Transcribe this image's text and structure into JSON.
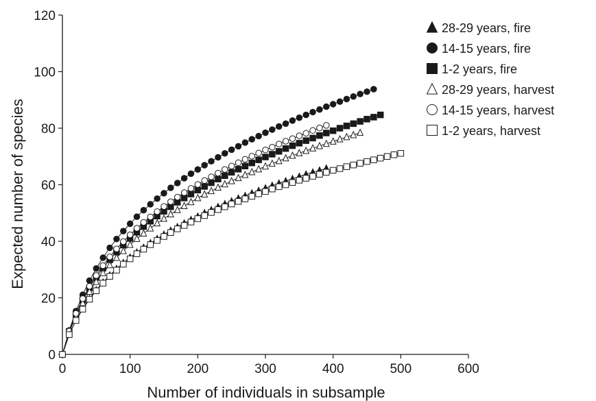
{
  "chart_data": {
    "type": "line",
    "xlabel": "Number of individuals in subsample",
    "ylabel": "Expected number of species",
    "xlim": [
      0,
      600
    ],
    "ylim": [
      0,
      120
    ],
    "xticks": [
      0,
      100,
      200,
      300,
      400,
      500,
      600
    ],
    "yticks": [
      0,
      20,
      40,
      60,
      80,
      100,
      120
    ],
    "grid": false,
    "legend_position": "top-right",
    "series": [
      {
        "name": "28-29 years, fire",
        "marker": "triangle",
        "filled": true,
        "x": [
          0,
          10,
          20,
          30,
          40,
          50,
          60,
          70,
          80,
          90,
          100,
          110,
          120,
          130,
          140,
          150,
          160,
          170,
          180,
          190,
          200,
          210,
          220,
          230,
          240,
          250,
          260,
          270,
          280,
          290,
          300,
          310,
          320,
          330,
          340,
          350,
          360,
          370,
          380,
          390
        ],
        "y": [
          0,
          7.0,
          12.1,
          16.2,
          19.7,
          22.8,
          25.5,
          28.0,
          30.3,
          32.4,
          34.3,
          36.1,
          37.8,
          39.4,
          40.9,
          42.4,
          43.8,
          45.1,
          46.4,
          47.6,
          48.8,
          50.0,
          51.1,
          52.2,
          53.2,
          54.2,
          55.2,
          56.1,
          57.0,
          57.9,
          58.8,
          59.7,
          60.5,
          61.3,
          62.1,
          62.9,
          63.7,
          64.4,
          65.1,
          65.8
        ]
      },
      {
        "name": "14-15 years, fire",
        "marker": "circle",
        "filled": true,
        "x": [
          0,
          10,
          20,
          30,
          40,
          50,
          60,
          70,
          80,
          90,
          100,
          110,
          120,
          130,
          140,
          150,
          160,
          170,
          180,
          190,
          200,
          210,
          220,
          230,
          240,
          250,
          260,
          270,
          280,
          290,
          300,
          310,
          320,
          330,
          340,
          350,
          360,
          370,
          380,
          390,
          400,
          410,
          420,
          430,
          440,
          450,
          460
        ],
        "y": [
          0,
          8.5,
          15.3,
          21.1,
          26.1,
          30.4,
          34.2,
          37.7,
          40.8,
          43.6,
          46.2,
          48.7,
          51.0,
          53.1,
          55.1,
          57.0,
          58.9,
          60.6,
          62.3,
          63.9,
          65.4,
          66.9,
          68.3,
          69.7,
          71.1,
          72.4,
          73.6,
          74.9,
          76.1,
          77.2,
          78.4,
          79.5,
          80.6,
          81.6,
          82.7,
          83.7,
          84.7,
          85.7,
          86.6,
          87.6,
          88.5,
          89.4,
          90.3,
          91.2,
          92.1,
          92.9,
          93.8
        ]
      },
      {
        "name": "1-2 years, fire",
        "marker": "square",
        "filled": true,
        "x": [
          0,
          10,
          20,
          30,
          40,
          50,
          60,
          70,
          80,
          90,
          100,
          110,
          120,
          130,
          140,
          150,
          160,
          170,
          180,
          190,
          200,
          210,
          220,
          230,
          240,
          250,
          260,
          270,
          280,
          290,
          300,
          310,
          320,
          330,
          340,
          350,
          360,
          370,
          380,
          390,
          400,
          410,
          420,
          430,
          440,
          450,
          460,
          470
        ],
        "y": [
          0,
          8.1,
          14.2,
          19.2,
          23.5,
          27.2,
          30.5,
          33.5,
          36.2,
          38.7,
          41.0,
          43.2,
          45.2,
          47.1,
          48.9,
          50.6,
          52.2,
          53.8,
          55.3,
          56.7,
          58.1,
          59.4,
          60.7,
          62.0,
          63.2,
          64.4,
          65.5,
          66.6,
          67.7,
          68.8,
          69.8,
          70.8,
          71.8,
          72.8,
          73.8,
          74.7,
          75.6,
          76.5,
          77.4,
          78.3,
          79.1,
          80.0,
          80.8,
          81.6,
          82.4,
          83.2,
          83.9,
          84.7
        ]
      },
      {
        "name": "28-29 years, harvest",
        "marker": "triangle",
        "filled": false,
        "x": [
          0,
          10,
          20,
          30,
          40,
          50,
          60,
          70,
          80,
          90,
          100,
          110,
          120,
          130,
          140,
          150,
          160,
          170,
          180,
          190,
          200,
          210,
          220,
          230,
          240,
          250,
          260,
          270,
          280,
          290,
          300,
          310,
          320,
          330,
          340,
          350,
          360,
          370,
          380,
          390,
          400,
          410,
          420,
          430,
          440
        ],
        "y": [
          0,
          7.8,
          13.5,
          18.2,
          22.2,
          25.7,
          28.8,
          31.6,
          34.2,
          36.6,
          38.8,
          40.9,
          42.8,
          44.6,
          46.4,
          48.0,
          49.6,
          51.1,
          52.5,
          53.9,
          55.3,
          56.6,
          57.8,
          59.0,
          60.2,
          61.3,
          62.4,
          63.5,
          64.5,
          65.5,
          66.5,
          67.5,
          68.4,
          69.4,
          70.3,
          71.2,
          72.0,
          72.9,
          73.7,
          74.5,
          75.3,
          76.1,
          76.9,
          77.6,
          78.4
        ]
      },
      {
        "name": "14-15 years, harvest",
        "marker": "circle",
        "filled": false,
        "x": [
          0,
          10,
          20,
          30,
          40,
          50,
          60,
          70,
          80,
          90,
          100,
          110,
          120,
          130,
          140,
          150,
          160,
          170,
          180,
          190,
          200,
          210,
          220,
          230,
          240,
          250,
          260,
          270,
          280,
          290,
          300,
          310,
          320,
          330,
          340,
          350,
          360,
          370,
          380,
          390
        ],
        "y": [
          0,
          8.2,
          14.5,
          19.7,
          24.1,
          27.9,
          31.4,
          34.5,
          37.3,
          39.9,
          42.3,
          44.6,
          46.7,
          48.6,
          50.5,
          52.3,
          54.0,
          55.6,
          57.2,
          58.7,
          60.1,
          61.5,
          62.8,
          64.1,
          65.4,
          66.6,
          67.8,
          69.0,
          70.1,
          71.2,
          72.3,
          73.3,
          74.4,
          75.4,
          76.3,
          77.3,
          78.2,
          79.2,
          80.1,
          81.0
        ]
      },
      {
        "name": "1-2 years, harvest",
        "marker": "square",
        "filled": false,
        "x": [
          0,
          10,
          20,
          30,
          40,
          50,
          60,
          70,
          80,
          90,
          100,
          110,
          120,
          130,
          140,
          150,
          160,
          170,
          180,
          190,
          200,
          210,
          220,
          230,
          240,
          250,
          260,
          270,
          280,
          290,
          300,
          310,
          320,
          330,
          340,
          350,
          360,
          370,
          380,
          390,
          400,
          410,
          420,
          430,
          440,
          450,
          460,
          470,
          480,
          490,
          500
        ],
        "y": [
          0,
          7.0,
          12.0,
          16.0,
          19.5,
          22.5,
          25.2,
          27.6,
          29.8,
          31.9,
          33.8,
          35.6,
          37.2,
          38.8,
          40.3,
          41.7,
          43.1,
          44.4,
          45.6,
          46.8,
          48.0,
          49.1,
          50.2,
          51.2,
          52.2,
          53.2,
          54.1,
          55.0,
          55.9,
          56.8,
          57.6,
          58.5,
          59.3,
          60.0,
          60.8,
          61.6,
          62.3,
          63.0,
          63.7,
          64.4,
          65.1,
          65.7,
          66.4,
          67.0,
          67.6,
          68.2,
          68.8,
          69.4,
          70.0,
          70.6,
          71.1
        ]
      }
    ]
  }
}
